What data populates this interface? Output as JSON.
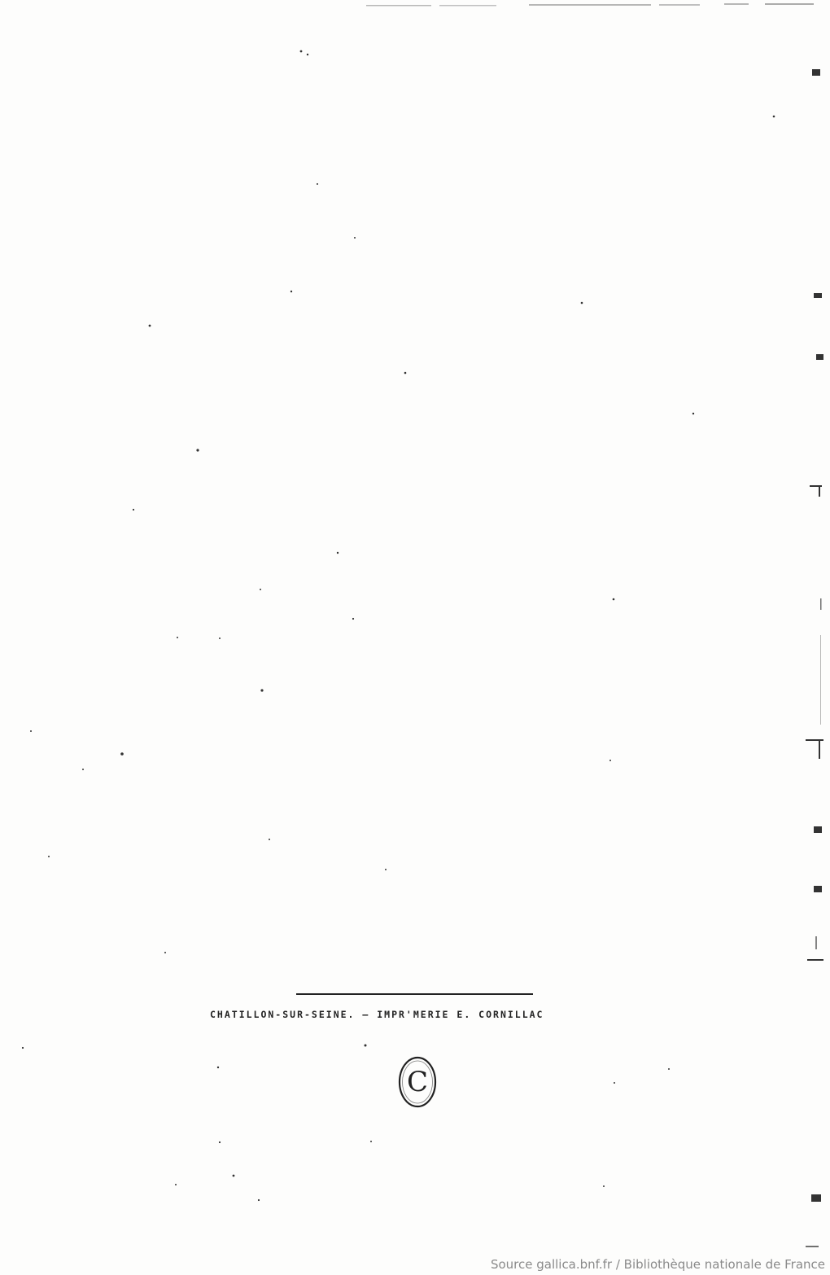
{
  "document": {
    "printer_imprint": "CHATILLON-SUR-SEINE. — IMPR'MERIE E. CORNILLAC",
    "stamp_monogram": "C",
    "source_note": "Source gallica.bnf.fr / Bibliothèque nationale de France"
  }
}
